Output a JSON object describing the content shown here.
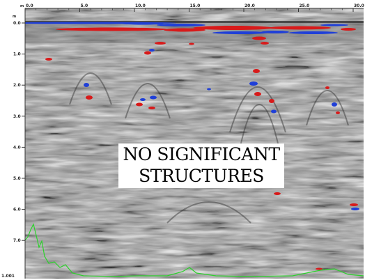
{
  "radargram": {
    "distance_unit": "m",
    "depth_unit": "m",
    "distance_ticks": [
      "0.0",
      "5.0",
      "10.0",
      "15.0",
      "20.0",
      "25.0",
      "30.0"
    ],
    "depth_ticks": [
      "0.0",
      "1.0",
      "2.0",
      "3.0",
      "4.0",
      "5.0",
      "6.0",
      "7.0"
    ],
    "bottom_left_label": "1.001",
    "annotation": [
      "NO SIGNIFICANT",
      "STRUCTURES"
    ],
    "colors": {
      "positive_anomaly": "#d81a1a",
      "negative_anomaly": "#1f3fd8",
      "trace_line": "#2bd12b",
      "background": "#9a9a9a"
    }
  }
}
